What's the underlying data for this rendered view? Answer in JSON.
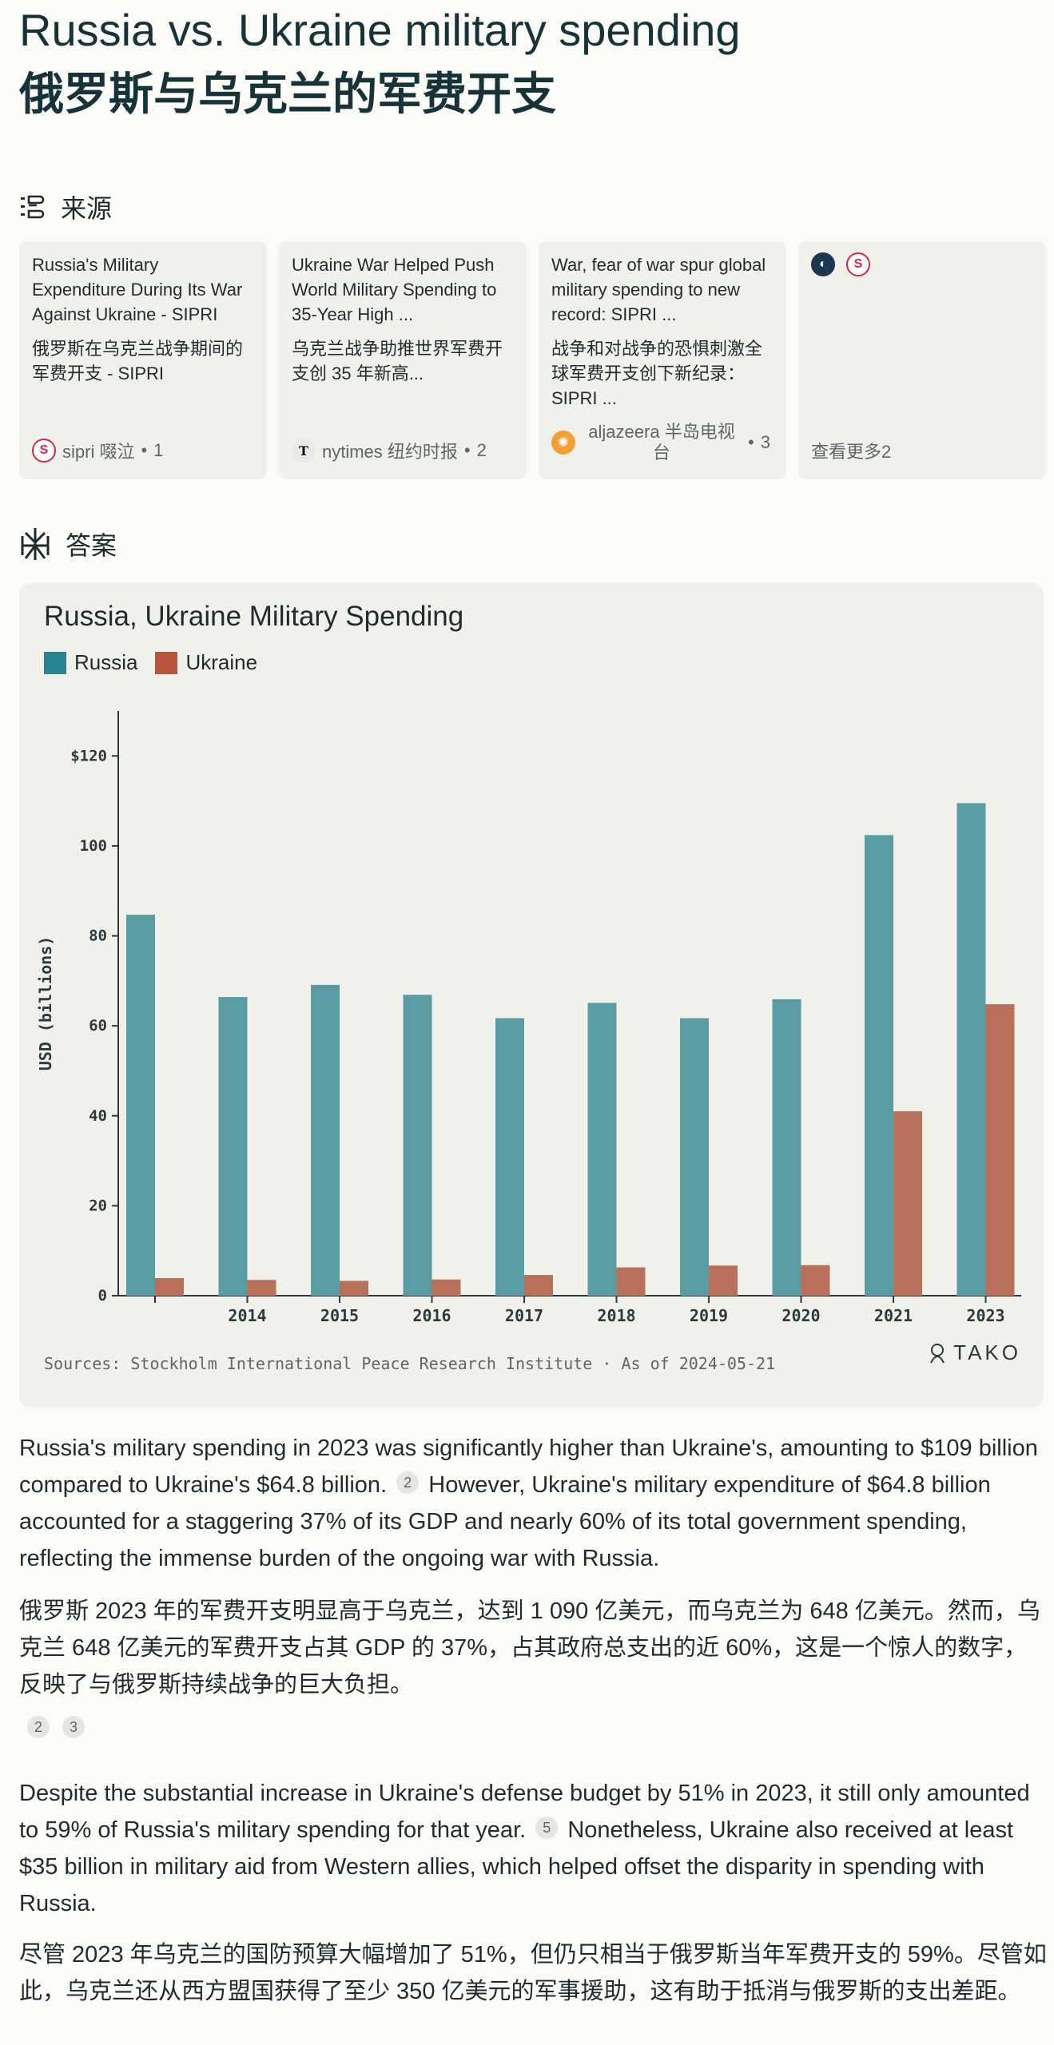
{
  "page": {
    "title": "Russia vs. Ukraine military spending",
    "title_zh": "俄罗斯与乌克兰的军费开支"
  },
  "sources_section": {
    "label": "来源",
    "cards": [
      {
        "title_en": "Russia's Military Expenditure During Its War Against Ukraine - SIPRI",
        "title_zh": "俄罗斯在乌克兰战争期间的军费开支 - SIPRI",
        "site": "sipri 啜泣",
        "index": "1"
      },
      {
        "title_en": "Ukraine War Helped Push World Military Spending to 35-Year High ...",
        "title_zh": "乌克兰战争助推世界军费开支创 35 年新高...",
        "site": "nytimes 纽约时报",
        "index": "2"
      },
      {
        "title_en": "War, fear of war spur global military spending to new record: SIPRI ...",
        "title_zh": "战争和对战争的恐惧刺激全球军费开支创下新纪录：SIPRI ...",
        "site": "aljazeera 半岛电视台",
        "index": "3"
      }
    ],
    "see_more": "查看更多2"
  },
  "answer_section": {
    "label": "答案"
  },
  "colors": {
    "russia": "#5a9ca3",
    "ukraine": "#b8705a",
    "card_bg": "#f1f1ec"
  },
  "chart_data": {
    "type": "bar",
    "title": "Russia, Ukraine Military Spending",
    "ylabel": "USD (billions)",
    "categories": [
      "",
      "2014",
      "2015",
      "2016",
      "2017",
      "2018",
      "2019",
      "2020",
      "2021",
      "2023"
    ],
    "series": [
      {
        "name": "Russia",
        "values": [
          84.7,
          66.4,
          69.1,
          66.9,
          61.7,
          65.1,
          61.7,
          65.9,
          102.4,
          109.5
        ]
      },
      {
        "name": "Ukraine",
        "values": [
          3.9,
          3.5,
          3.3,
          3.6,
          4.6,
          6.3,
          6.7,
          6.8,
          41.0,
          64.8
        ]
      }
    ],
    "ylim": [
      0,
      130
    ],
    "yticks": [
      "0",
      "20",
      "40",
      "60",
      "80",
      "100",
      "$120"
    ],
    "source": "Sources: Stockholm International Peace Research Institute · As of 2024-05-21",
    "brand": "TAKO"
  },
  "paragraphs": [
    {
      "en_before": "Russia's military spending in 2023 was significantly higher than Ukraine's, amounting to $109 billion compared to Ukraine's $64.8 billion.",
      "en_cite": "2",
      "en_after": "However, Ukraine's military expenditure of $64.8 billion accounted for a staggering 37% of its GDP and nearly 60% of its total government spending, reflecting the immense burden of the ongoing war with Russia.",
      "zh": "俄罗斯 2023 年的军费开支明显高于乌克兰，达到 1 090 亿美元，而乌克兰为 648 亿美元。然而，乌克兰 648 亿美元的军费开支占其 GDP 的 37%，占其政府总支出的近 60%，这是一个惊人的数字，反映了与俄罗斯持续战争的巨大负担。",
      "cites": [
        "2",
        "3"
      ]
    },
    {
      "en_before": "Despite the substantial increase in Ukraine's defense budget by 51% in 2023, it still only amounted to 59% of Russia's military spending for that year.",
      "en_cite": "5",
      "en_after": "Nonetheless, Ukraine also received at least $35 billion in military aid from Western allies, which helped offset the disparity in spending with Russia.",
      "zh": "尽管 2023 年乌克兰的国防预算大幅增加了 51%，但仍只相当于俄罗斯当年军费开支的 59%。尽管如此，乌克兰还从西方盟国获得了至少 350 亿美元的军事援助，这有助于抵消与俄罗斯的支出差距。"
    }
  ]
}
